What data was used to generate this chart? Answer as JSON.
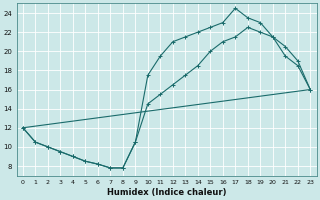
{
  "xlabel": "Humidex (Indice chaleur)",
  "xlim": [
    -0.5,
    23.5
  ],
  "ylim": [
    7.0,
    25.0
  ],
  "xticks": [
    0,
    1,
    2,
    3,
    4,
    5,
    6,
    7,
    8,
    9,
    10,
    11,
    12,
    13,
    14,
    15,
    16,
    17,
    18,
    19,
    20,
    21,
    22,
    23
  ],
  "yticks": [
    8,
    10,
    12,
    14,
    16,
    18,
    20,
    22,
    24
  ],
  "bg_color": "#cce8e8",
  "line_color": "#1a6b6b",
  "grid_color": "#ffffff",
  "line1_x": [
    0,
    1,
    2,
    3,
    4,
    5,
    6,
    7,
    8,
    9,
    10,
    11,
    12,
    13,
    14,
    15,
    16,
    17,
    18,
    19,
    20,
    21,
    22,
    23
  ],
  "line1_y": [
    12,
    10.5,
    10,
    9.5,
    9.0,
    8.5,
    8.2,
    7.8,
    7.8,
    10.5,
    17.5,
    19.5,
    21.0,
    21.5,
    22.0,
    22.5,
    23.0,
    24.5,
    23.5,
    23.0,
    21.5,
    19.5,
    18.5,
    16.0
  ],
  "line2_x": [
    0,
    1,
    2,
    3,
    4,
    5,
    6,
    7,
    8,
    9,
    10,
    11,
    12,
    13,
    14,
    15,
    16,
    17,
    18,
    19,
    20,
    21,
    22,
    23
  ],
  "line2_y": [
    12,
    10.5,
    10,
    9.5,
    9.0,
    8.5,
    8.2,
    7.8,
    7.8,
    10.5,
    14.5,
    15.5,
    16.5,
    17.5,
    18.5,
    20.0,
    21.0,
    21.5,
    22.5,
    22.0,
    21.5,
    20.5,
    19.0,
    16.0
  ],
  "line3_x": [
    0,
    23
  ],
  "line3_y": [
    12,
    16
  ]
}
